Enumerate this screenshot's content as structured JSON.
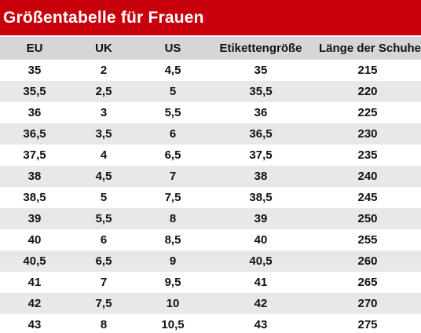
{
  "title": "Größentabelle für Frauen",
  "columns": [
    "EU",
    "UK",
    "US",
    "Etikettengröße",
    "Länge der Schuhe"
  ],
  "rows": [
    [
      "35",
      "2",
      "4,5",
      "35",
      "215"
    ],
    [
      "35,5",
      "2,5",
      "5",
      "35,5",
      "220"
    ],
    [
      "36",
      "3",
      "5,5",
      "36",
      "225"
    ],
    [
      "36,5",
      "3,5",
      "6",
      "36,5",
      "230"
    ],
    [
      "37,5",
      "4",
      "6,5",
      "37,5",
      "235"
    ],
    [
      "38",
      "4,5",
      "7",
      "38",
      "240"
    ],
    [
      "38,5",
      "5",
      "7,5",
      "38,5",
      "245"
    ],
    [
      "39",
      "5,5",
      "8",
      "39",
      "250"
    ],
    [
      "40",
      "6",
      "8,5",
      "40",
      "255"
    ],
    [
      "40,5",
      "6,5",
      "9",
      "40,5",
      "260"
    ],
    [
      "41",
      "7",
      "9,5",
      "41",
      "265"
    ],
    [
      "42",
      "7,5",
      "10",
      "42",
      "270"
    ],
    [
      "43",
      "8",
      "10,5",
      "43",
      "275"
    ]
  ],
  "colors": {
    "title_background": "#c8000b",
    "title_text": "#ffffff",
    "header_background": "#d6d6d6",
    "row_stripe": "#e8e8e8"
  }
}
